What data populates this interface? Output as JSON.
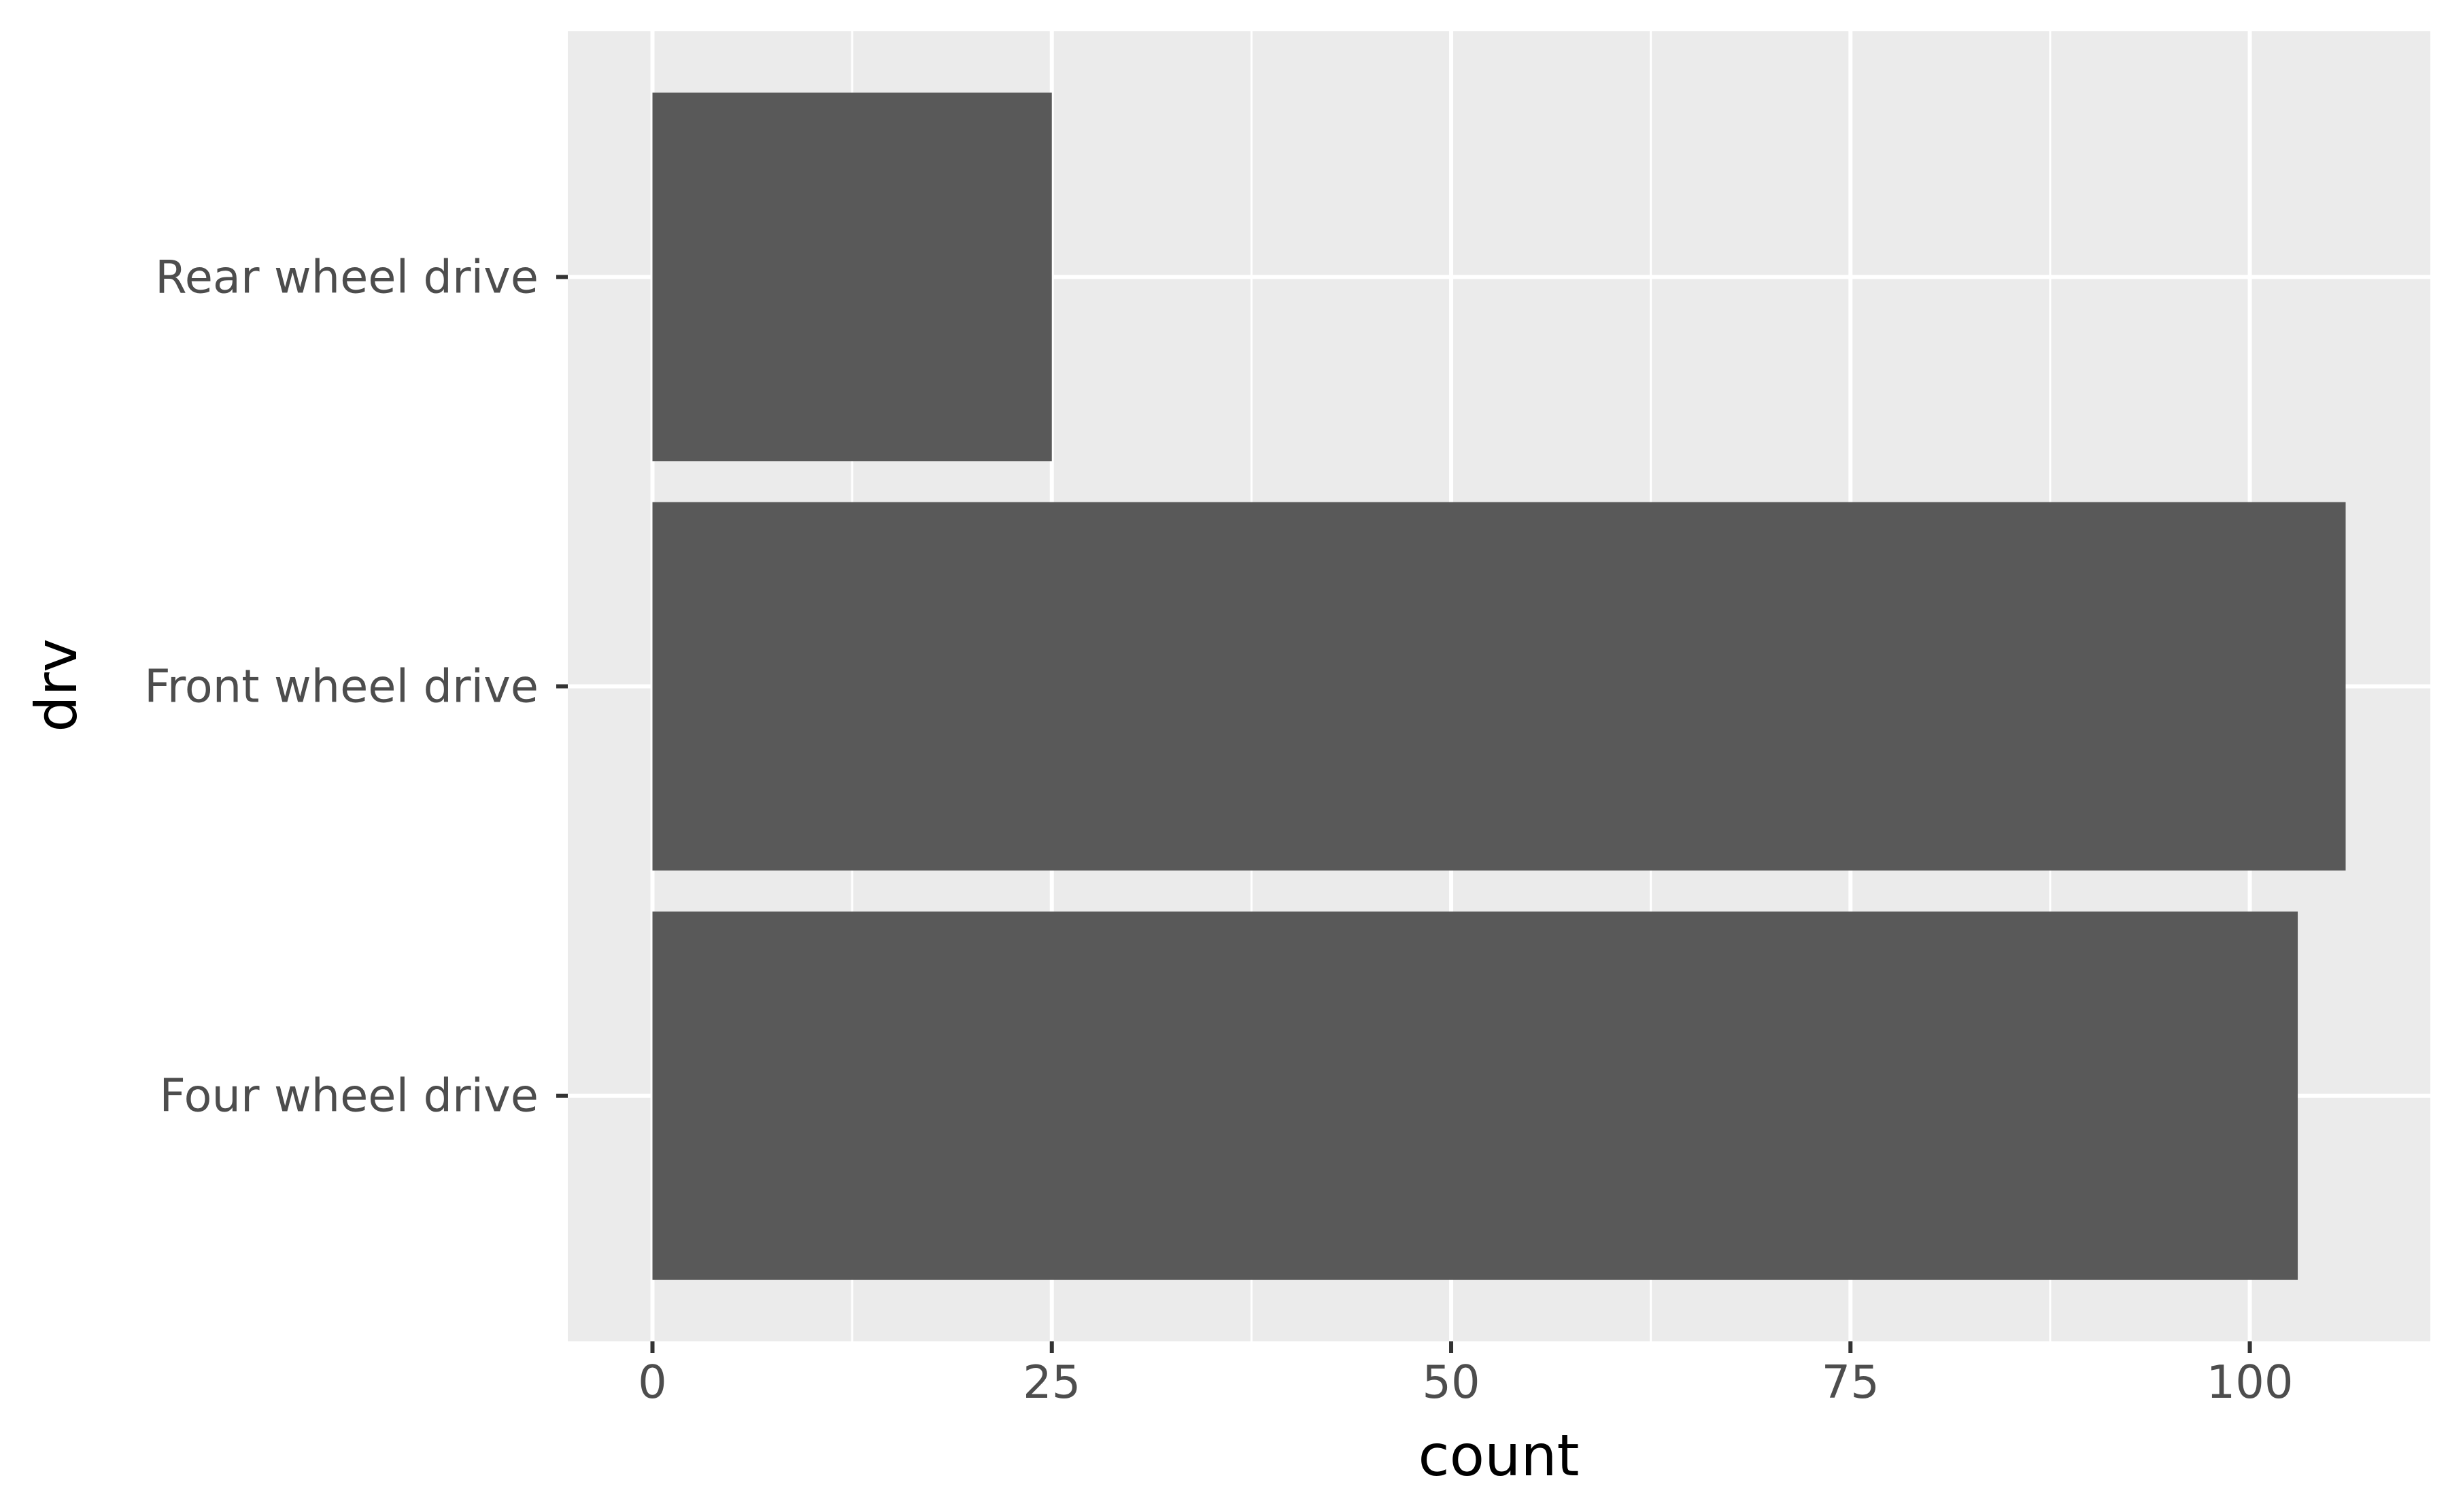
{
  "chart_data": {
    "type": "bar",
    "orientation": "horizontal",
    "categories": [
      "Four wheel drive",
      "Front wheel drive",
      "Rear wheel drive"
    ],
    "values": [
      103,
      106,
      25
    ],
    "xlabel": "count",
    "ylabel": "drv",
    "xlim": [
      -5.3,
      111.3
    ],
    "xticks": [
      0,
      25,
      50,
      75,
      100
    ],
    "xticks_minor": [
      12.5,
      37.5,
      62.5,
      87.5
    ],
    "grid": true,
    "legend": "none",
    "colors": {
      "panel": "#ebebeb",
      "bar": "#595959",
      "grid": "#ffffff",
      "tick_text": "#4d4d4d",
      "axis_title": "#000000",
      "tick_mark": "#333333"
    }
  }
}
